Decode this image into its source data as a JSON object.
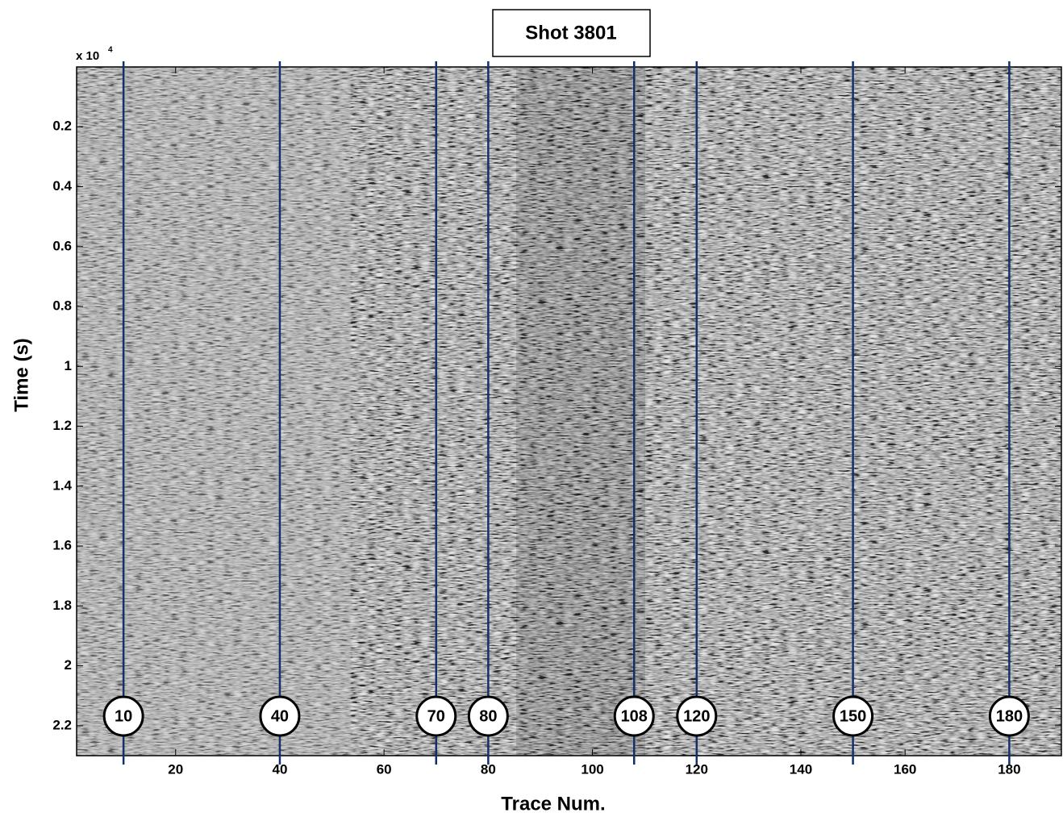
{
  "chart_data": {
    "type": "seismic-section",
    "title": "Shot 3801",
    "x_label": "Trace Num.",
    "y_label": "Time (s)",
    "axis_multiplier": {
      "base": "x 10",
      "exponent": "4"
    },
    "xlim": [
      1,
      190
    ],
    "xticks": [
      20,
      40,
      60,
      80,
      100,
      120,
      140,
      160,
      180
    ],
    "ylim": [
      0,
      2.3
    ],
    "yticks": [
      0.2,
      0.4,
      0.6,
      0.8,
      1,
      1.2,
      1.4,
      1.6,
      1.8,
      2,
      2.2
    ],
    "y_inverted": true,
    "trace_markers": {
      "x": [
        10,
        40,
        70,
        80,
        108,
        120,
        150,
        180
      ],
      "color": "#14306b"
    }
  }
}
